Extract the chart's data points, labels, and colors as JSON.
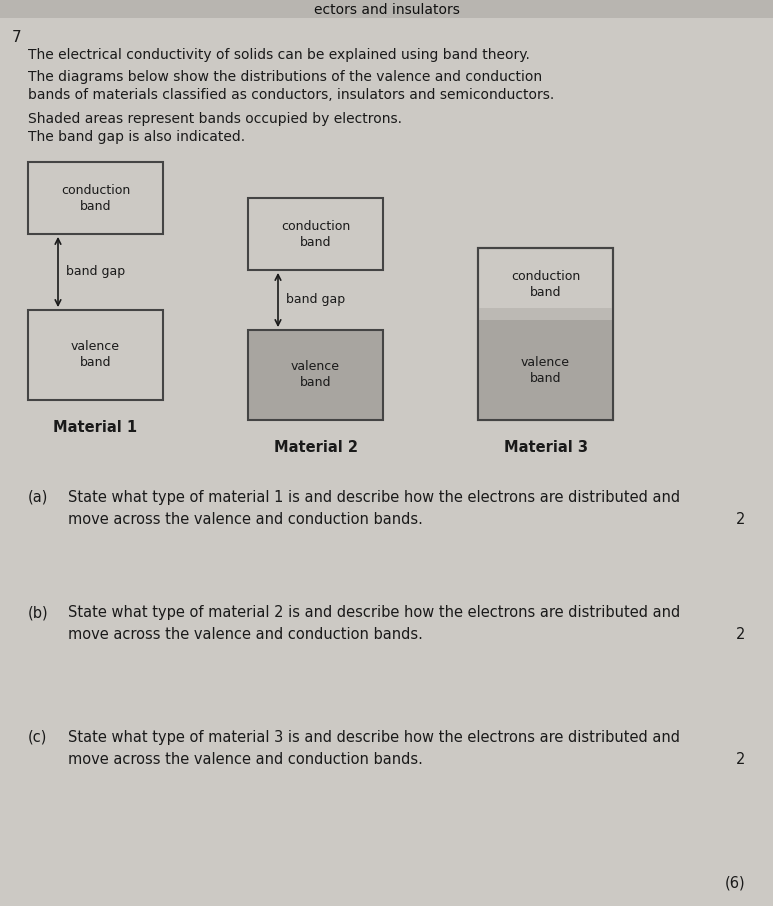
{
  "bg_color": "#ccc9c4",
  "header_bg": "#b8b5b0",
  "text_color": "#1a1a1a",
  "box_fc": "#ccc9c4",
  "box_ec": "#444444",
  "shaded_fc": "#a8a5a0",
  "shaded_fc2": "#bcb9b4",
  "header_text": "ectors and insulators",
  "page_number": "7",
  "intro": [
    "The electrical conductivity of solids can be explained using band theory.",
    "The diagrams below show the distributions of the valence and conduction",
    "bands of materials classified as conductors, insulators and semiconductors.",
    "Shaded areas represent bands occupied by electrons.",
    "The band gap is also indicated."
  ],
  "mat_labels": [
    "Material 1",
    "Material 2",
    "Material 3"
  ],
  "questions": [
    {
      "label": "(a)",
      "text1": "State what type of material 1 is and describe how the electrons are distributed and",
      "text2": "move across the valence and conduction bands.",
      "mark": "2"
    },
    {
      "label": "(b)",
      "text1": "State what type of material 2 is and describe how the electrons are distributed and",
      "text2": "move across the valence and conduction bands.",
      "mark": "2"
    },
    {
      "label": "(c)",
      "text1": "State what type of material 3 is and describe how the electrons are distributed and",
      "text2": "move across the valence and conduction bands.",
      "mark": "2"
    }
  ],
  "footer": "(6)"
}
